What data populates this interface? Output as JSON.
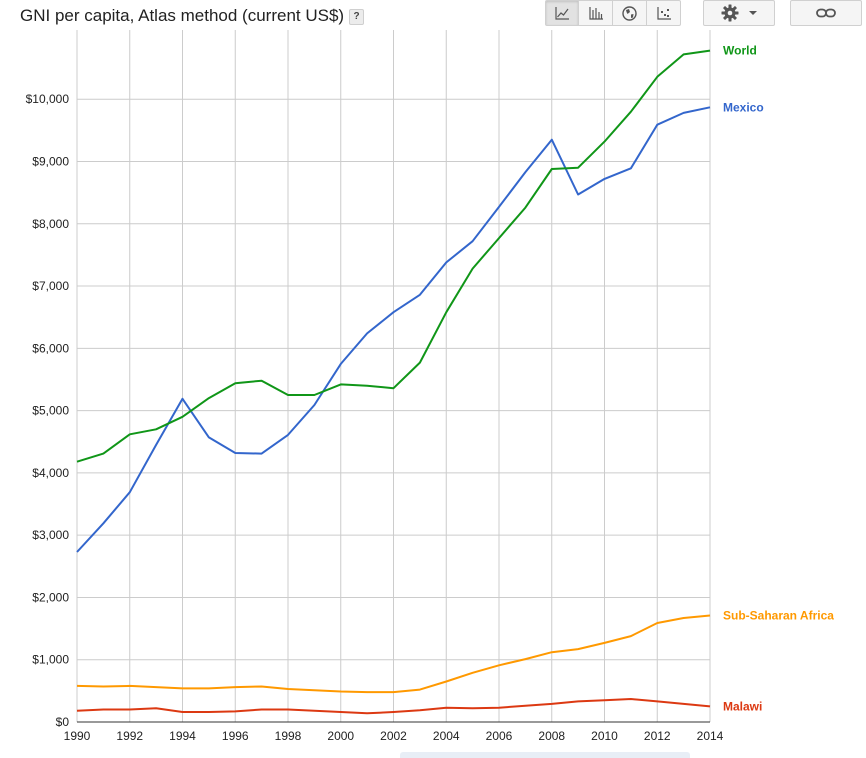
{
  "header": {
    "title": "GNI per capita, Atlas method (current US$)",
    "help_label": "?"
  },
  "toolbar": {
    "buttons": [
      {
        "icon": "line-chart-icon",
        "active": true
      },
      {
        "icon": "bar-chart-icon",
        "active": false
      },
      {
        "icon": "globe-map-icon",
        "active": false
      },
      {
        "icon": "scatter-chart-icon",
        "active": false
      }
    ],
    "settings_icon": "gear-icon",
    "share_icon": "link-icon"
  },
  "chart_data": {
    "type": "line",
    "title": "GNI per capita, Atlas method (current US$)",
    "xlabel": "",
    "ylabel": "",
    "xlim": [
      1990,
      2014
    ],
    "ylim": [
      0,
      10800
    ],
    "grid": true,
    "x": [
      1990,
      1991,
      1992,
      1993,
      1994,
      1995,
      1996,
      1997,
      1998,
      1999,
      2000,
      2001,
      2002,
      2003,
      2004,
      2005,
      2006,
      2007,
      2008,
      2009,
      2010,
      2011,
      2012,
      2013,
      2014
    ],
    "x_ticks": [
      1990,
      1992,
      1994,
      1996,
      1998,
      2000,
      2002,
      2004,
      2006,
      2008,
      2010,
      2012,
      2014
    ],
    "y_ticks": [
      {
        "value": 0,
        "label": "$0"
      },
      {
        "value": 1000,
        "label": "$1,000"
      },
      {
        "value": 2000,
        "label": "$2,000"
      },
      {
        "value": 3000,
        "label": "$3,000"
      },
      {
        "value": 4000,
        "label": "$4,000"
      },
      {
        "value": 5000,
        "label": "$5,000"
      },
      {
        "value": 6000,
        "label": "$6,000"
      },
      {
        "value": 7000,
        "label": "$7,000"
      },
      {
        "value": 8000,
        "label": "$8,000"
      },
      {
        "value": 9000,
        "label": "$9,000"
      },
      {
        "value": 10000,
        "label": "$10,000"
      }
    ],
    "legend_position": "right-end-labels",
    "series": [
      {
        "name": "World",
        "color": "#109618",
        "values": [
          4180,
          4310,
          4620,
          4700,
          4900,
          5200,
          5440,
          5480,
          5250,
          5250,
          5420,
          5400,
          5360,
          5770,
          6580,
          7280,
          7770,
          8260,
          8880,
          8900,
          9320,
          9800,
          10360,
          10720,
          10780
        ]
      },
      {
        "name": "Mexico",
        "color": "#3366cc",
        "values": [
          2730,
          3190,
          3690,
          4450,
          5190,
          4570,
          4320,
          4310,
          4610,
          5090,
          5750,
          6240,
          6580,
          6860,
          7380,
          7720,
          8270,
          8830,
          9350,
          8470,
          8720,
          8890,
          9590,
          9780,
          9870
        ]
      },
      {
        "name": "Sub-Saharan Africa",
        "color": "#ff9900",
        "values": [
          580,
          570,
          580,
          560,
          540,
          540,
          560,
          570,
          530,
          510,
          490,
          480,
          480,
          520,
          650,
          790,
          910,
          1010,
          1120,
          1170,
          1270,
          1380,
          1590,
          1670,
          1710
        ]
      },
      {
        "name": "Malawi",
        "color": "#dc3912",
        "values": [
          180,
          200,
          200,
          220,
          160,
          160,
          170,
          200,
          200,
          180,
          160,
          140,
          160,
          190,
          230,
          220,
          230,
          260,
          290,
          330,
          350,
          370,
          330,
          290,
          250
        ]
      }
    ]
  }
}
